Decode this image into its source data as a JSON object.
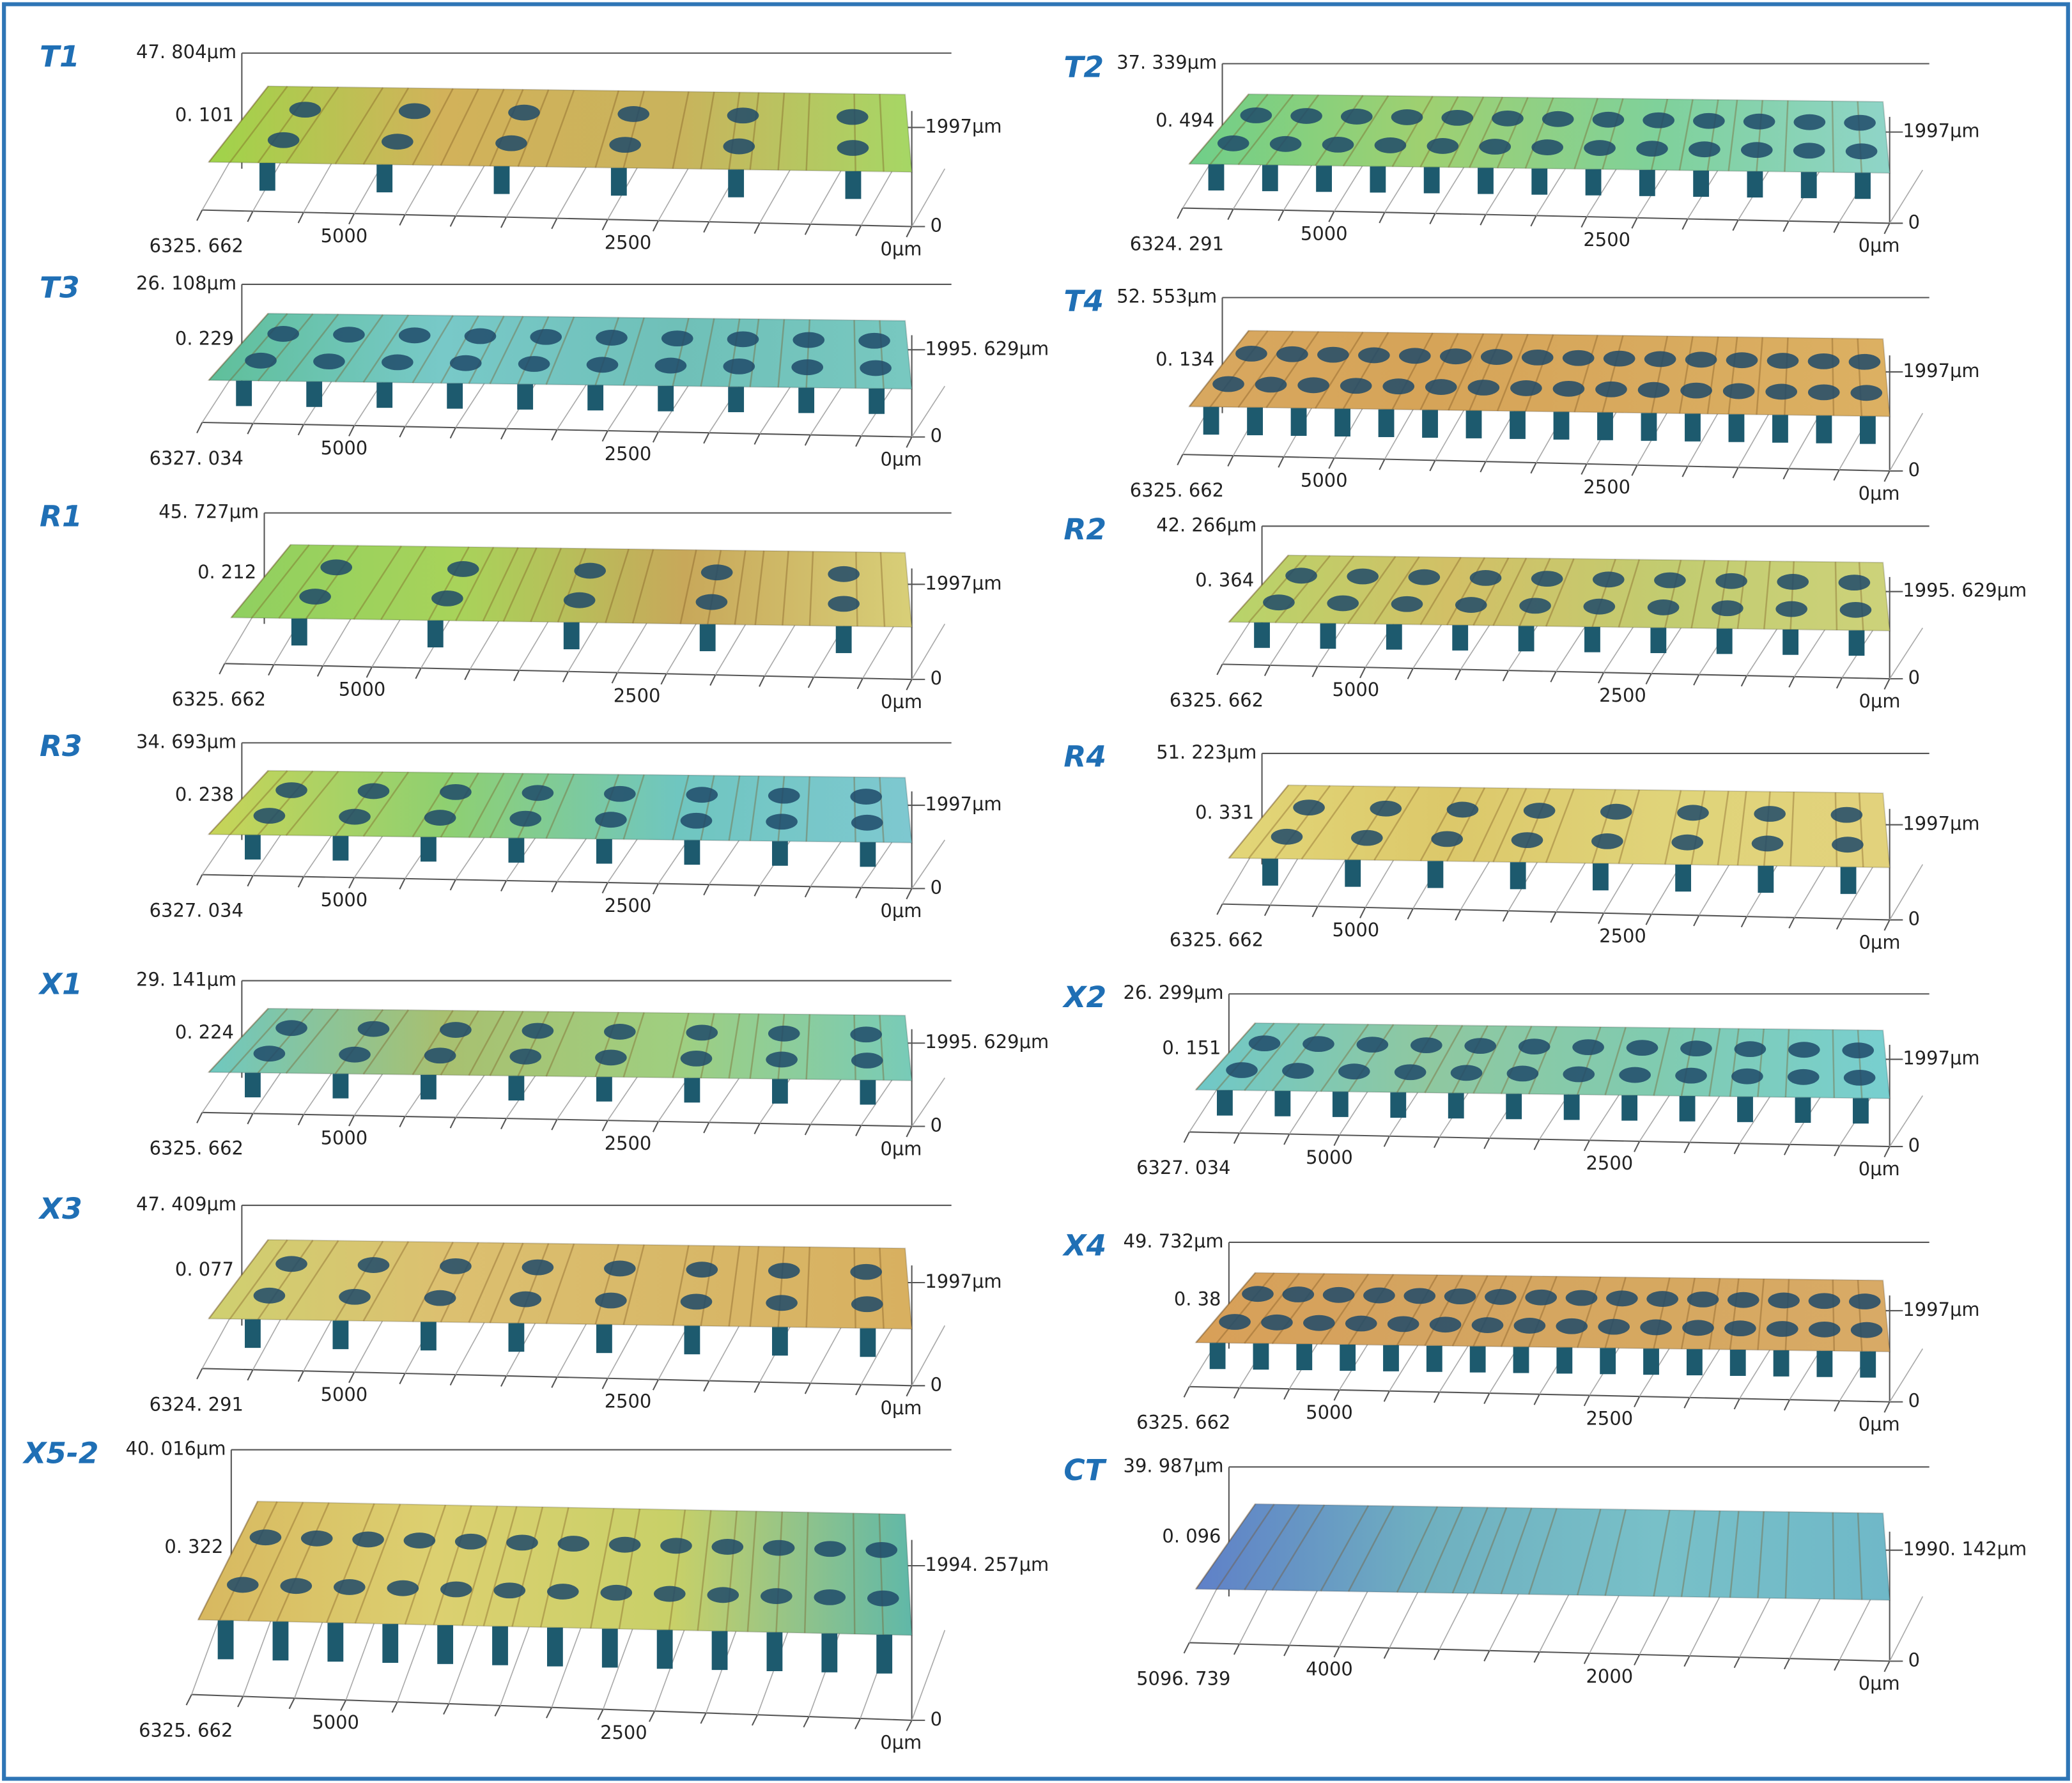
{
  "panels": [
    {
      "label": "T1",
      "z_max": "47. 804μm",
      "z_min": "0. 101",
      "y_max": "1997μm",
      "y_min": "0",
      "x_max": "6325. 662",
      "x_ticks": [
        "5000",
        "2500",
        "0μm"
      ]
    },
    {
      "label": "T2",
      "z_max": "37. 339μm",
      "z_min": "0. 494",
      "y_max": "1997μm",
      "y_min": "0",
      "x_max": "6324. 291",
      "x_ticks": [
        "5000",
        "2500",
        "0μm"
      ]
    },
    {
      "label": "T3",
      "z_max": "26. 108μm",
      "z_min": "0. 229",
      "y_max": "1995. 629μm",
      "y_min": "0",
      "x_max": "6327. 034",
      "x_ticks": [
        "5000",
        "2500",
        "0μm"
      ]
    },
    {
      "label": "T4",
      "z_max": "52. 553μm",
      "z_min": "0. 134",
      "y_max": "1997μm",
      "y_min": "0",
      "x_max": "6325. 662",
      "x_ticks": [
        "5000",
        "2500",
        "0μm"
      ]
    },
    {
      "label": "R1",
      "z_max": "45. 727μm",
      "z_min": "0. 212",
      "y_max": "1997μm",
      "y_min": "0",
      "x_max": "6325. 662",
      "x_ticks": [
        "5000",
        "2500",
        "0μm"
      ]
    },
    {
      "label": "R2",
      "z_max": "42. 266μm",
      "z_min": "0. 364",
      "y_max": "1995. 629μm",
      "y_min": "0",
      "x_max": "6325. 662",
      "x_ticks": [
        "5000",
        "2500",
        "0μm"
      ]
    },
    {
      "label": "R3",
      "z_max": "34. 693μm",
      "z_min": "0. 238",
      "y_max": "1997μm",
      "y_min": "0",
      "x_max": "6327. 034",
      "x_ticks": [
        "5000",
        "2500",
        "0μm"
      ]
    },
    {
      "label": "R4",
      "z_max": "51. 223μm",
      "z_min": "0. 331",
      "y_max": "1997μm",
      "y_min": "0",
      "x_max": "6325. 662",
      "x_ticks": [
        "5000",
        "2500",
        "0μm"
      ]
    },
    {
      "label": "X1",
      "z_max": "29. 141μm",
      "z_min": "0. 224",
      "y_max": "1995. 629μm",
      "y_min": "0",
      "x_max": "6325. 662",
      "x_ticks": [
        "5000",
        "2500",
        "0μm"
      ]
    },
    {
      "label": "X2",
      "z_max": "26. 299μm",
      "z_min": "0. 151",
      "y_max": "1997μm",
      "y_min": "0",
      "x_max": "6327. 034",
      "x_ticks": [
        "5000",
        "2500",
        "0μm"
      ]
    },
    {
      "label": "X3",
      "z_max": "47. 409μm",
      "z_min": "0. 077",
      "y_max": "1997μm",
      "y_min": "0",
      "x_max": "6324. 291",
      "x_ticks": [
        "5000",
        "2500",
        "0μm"
      ]
    },
    {
      "label": "X4",
      "z_max": "49. 732μm",
      "z_min": "0. 38",
      "y_max": "1997μm",
      "y_min": "0",
      "x_max": "6325. 662",
      "x_ticks": [
        "5000",
        "2500",
        "0μm"
      ]
    },
    {
      "label": "X5-2",
      "z_max": "40. 016μm",
      "z_min": "0. 322",
      "y_max": "1994. 257μm",
      "y_min": "0",
      "x_max": "6325. 662",
      "x_ticks": [
        "5000",
        "2500",
        "0μm"
      ]
    },
    {
      "label": "CT",
      "z_max": "39. 987μm",
      "z_min": "0. 096",
      "y_max": "1990. 142μm",
      "y_min": "0",
      "x_max": "5096. 739",
      "x_ticks": [
        "4000",
        "2000",
        "0μm"
      ]
    }
  ]
}
